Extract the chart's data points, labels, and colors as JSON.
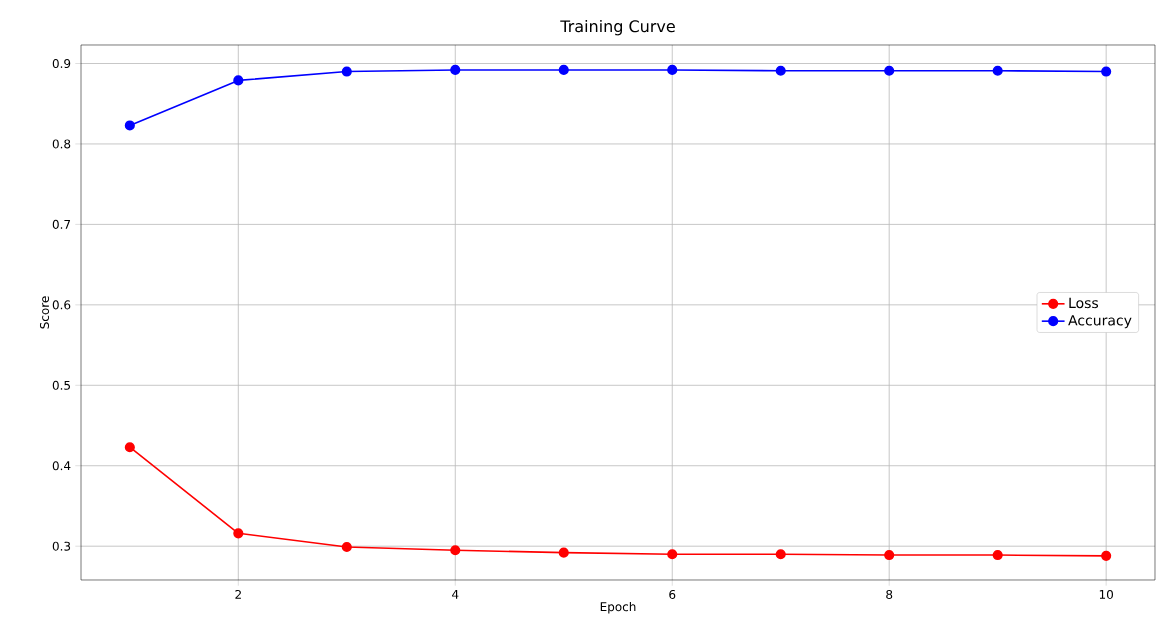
{
  "chart_data": {
    "type": "line",
    "title": "Training Curve",
    "xlabel": "Epoch",
    "ylabel": "Score",
    "x": [
      1,
      2,
      3,
      4,
      5,
      6,
      7,
      8,
      9,
      10
    ],
    "series": [
      {
        "name": "Loss",
        "color": "#ff0000",
        "values": [
          0.423,
          0.316,
          0.299,
          0.295,
          0.292,
          0.29,
          0.29,
          0.289,
          0.289,
          0.288
        ]
      },
      {
        "name": "Accuracy",
        "color": "#0000ff",
        "values": [
          0.823,
          0.879,
          0.89,
          0.892,
          0.892,
          0.892,
          0.891,
          0.891,
          0.891,
          0.89
        ]
      }
    ],
    "xlim": [
      0.55,
      10.45
    ],
    "ylim": [
      0.258,
      0.923
    ],
    "xticks": [
      2,
      4,
      6,
      8,
      10
    ],
    "yticks": [
      0.3,
      0.4,
      0.5,
      0.6,
      0.7,
      0.8,
      0.9
    ],
    "grid": true,
    "legend": "right",
    "marker": "circle",
    "line_style": "solid"
  }
}
